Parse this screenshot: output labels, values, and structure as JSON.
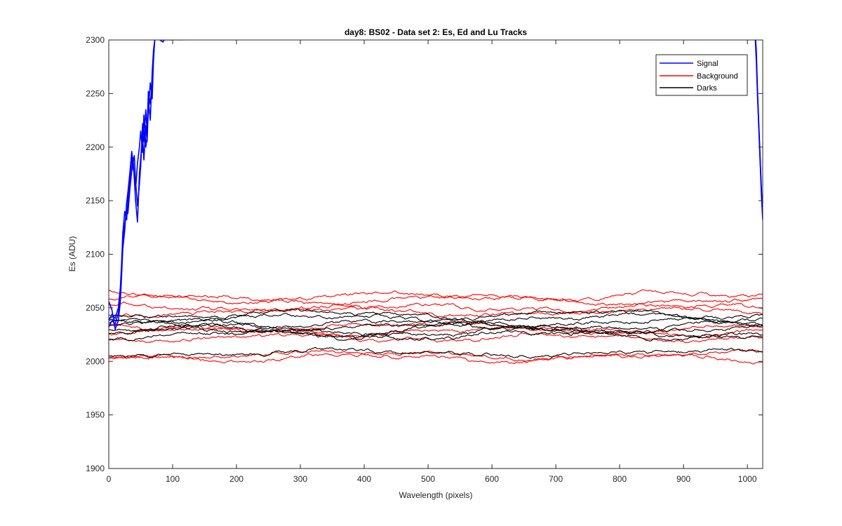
{
  "chart_data": {
    "type": "line",
    "title": "day8: BS02 - Data set 2: Es, Ed and Lu Tracks",
    "xlabel": "Wavelength (pixels)",
    "ylabel": "Es (ADU)",
    "xlim": [
      0,
      1024
    ],
    "ylim": [
      1900,
      2300
    ],
    "xticks": [
      0,
      100,
      200,
      300,
      400,
      500,
      600,
      700,
      800,
      900,
      1000
    ],
    "yticks": [
      1900,
      1950,
      2000,
      2050,
      2100,
      2150,
      2200,
      2250,
      2300
    ],
    "grid": false,
    "legend": {
      "placement": "top-right",
      "entries": [
        {
          "label": "Signal",
          "color": "#0000ff"
        },
        {
          "label": "Background",
          "color": "#ff0000"
        },
        {
          "label": "Darks",
          "color": "#000000"
        }
      ]
    },
    "series": [
      {
        "group": "Signal",
        "color": "#0000ff",
        "points": [
          [
            0,
            2038
          ],
          [
            5,
            2044
          ],
          [
            10,
            2040
          ],
          [
            15,
            2050
          ],
          [
            18,
            2068
          ],
          [
            20,
            2090
          ],
          [
            22,
            2120
          ],
          [
            25,
            2140
          ],
          [
            28,
            2132
          ],
          [
            30,
            2150
          ],
          [
            33,
            2170
          ],
          [
            36,
            2190
          ],
          [
            38,
            2180
          ],
          [
            40,
            2175
          ],
          [
            42,
            2160
          ],
          [
            45,
            2185
          ],
          [
            48,
            2200
          ],
          [
            50,
            2215
          ],
          [
            53,
            2195
          ],
          [
            55,
            2230
          ],
          [
            58,
            2200
          ],
          [
            60,
            2210
          ],
          [
            62,
            2245
          ],
          [
            65,
            2225
          ],
          [
            68,
            2270
          ],
          [
            70,
            2290
          ],
          [
            72,
            2300
          ],
          [
            75,
            2305
          ],
          [
            80,
            2300
          ],
          [
            85,
            2298
          ],
          [
            90,
            2305
          ],
          [
            95,
            2310
          ],
          [
            1012,
            2310
          ],
          [
            1014,
            2290
          ],
          [
            1016,
            2250
          ],
          [
            1018,
            2220
          ],
          [
            1020,
            2190
          ],
          [
            1022,
            2160
          ],
          [
            1024,
            2135
          ]
        ]
      },
      {
        "group": "Signal",
        "color": "#0000ff",
        "points": [
          [
            0,
            2032
          ],
          [
            5,
            2038
          ],
          [
            10,
            2035
          ],
          [
            15,
            2045
          ],
          [
            18,
            2060
          ],
          [
            20,
            2085
          ],
          [
            22,
            2112
          ],
          [
            25,
            2128
          ],
          [
            28,
            2140
          ],
          [
            30,
            2138
          ],
          [
            33,
            2160
          ],
          [
            36,
            2178
          ],
          [
            38,
            2190
          ],
          [
            40,
            2170
          ],
          [
            42,
            2150
          ],
          [
            45,
            2130
          ],
          [
            48,
            2175
          ],
          [
            50,
            2190
          ],
          [
            53,
            2210
          ],
          [
            55,
            2188
          ],
          [
            58,
            2220
          ],
          [
            60,
            2205
          ],
          [
            62,
            2235
          ],
          [
            65,
            2260
          ],
          [
            68,
            2245
          ],
          [
            70,
            2280
          ],
          [
            72,
            2300
          ],
          [
            75,
            2302
          ],
          [
            80,
            2300
          ],
          [
            1012,
            2305
          ],
          [
            1014,
            2280
          ],
          [
            1016,
            2245
          ],
          [
            1018,
            2215
          ],
          [
            1020,
            2185
          ],
          [
            1022,
            2155
          ],
          [
            1024,
            2132
          ]
        ]
      },
      {
        "group": "Signal",
        "color": "#0000ff",
        "points": [
          [
            0,
            2056
          ],
          [
            5,
            2048
          ],
          [
            10,
            2030
          ],
          [
            15,
            2038
          ],
          [
            18,
            2055
          ],
          [
            20,
            2078
          ],
          [
            22,
            2105
          ],
          [
            25,
            2122
          ],
          [
            28,
            2148
          ],
          [
            30,
            2158
          ],
          [
            33,
            2176
          ],
          [
            36,
            2196
          ],
          [
            38,
            2186
          ],
          [
            40,
            2192
          ],
          [
            42,
            2168
          ],
          [
            45,
            2145
          ],
          [
            48,
            2165
          ],
          [
            50,
            2182
          ],
          [
            53,
            2222
          ],
          [
            55,
            2205
          ],
          [
            58,
            2235
          ],
          [
            60,
            2215
          ],
          [
            62,
            2252
          ],
          [
            65,
            2240
          ],
          [
            68,
            2262
          ],
          [
            70,
            2285
          ],
          [
            72,
            2300
          ],
          [
            75,
            2306
          ],
          [
            1012,
            2308
          ],
          [
            1014,
            2285
          ],
          [
            1016,
            2248
          ],
          [
            1018,
            2218
          ],
          [
            1020,
            2188
          ],
          [
            1022,
            2158
          ],
          [
            1024,
            2133
          ]
        ]
      },
      {
        "group": "Background",
        "color": "#ff0000",
        "base": 2061,
        "amp": 3.0
      },
      {
        "group": "Background",
        "color": "#ff0000",
        "base": 2057,
        "amp": 3.0
      },
      {
        "group": "Background",
        "color": "#ff0000",
        "base": 2050,
        "amp": 2.5
      },
      {
        "group": "Background",
        "color": "#ff0000",
        "base": 2046,
        "amp": 2.5
      },
      {
        "group": "Background",
        "color": "#ff0000",
        "base": 2032,
        "amp": 3.0
      },
      {
        "group": "Background",
        "color": "#ff0000",
        "base": 2028,
        "amp": 3.0
      },
      {
        "group": "Background",
        "color": "#ff0000",
        "base": 2022,
        "amp": 2.5
      },
      {
        "group": "Background",
        "color": "#ff0000",
        "base": 2006,
        "amp": 3.0
      },
      {
        "group": "Background",
        "color": "#ff0000",
        "base": 2003,
        "amp": 3.0
      },
      {
        "group": "Darks",
        "color": "#000000",
        "base": 2044,
        "amp": 3.0
      },
      {
        "group": "Darks",
        "color": "#000000",
        "base": 2040,
        "amp": 3.0
      },
      {
        "group": "Darks",
        "color": "#000000",
        "base": 2036,
        "amp": 3.0
      },
      {
        "group": "Darks",
        "color": "#000000",
        "base": 2033,
        "amp": 3.0
      },
      {
        "group": "Darks",
        "color": "#000000",
        "base": 2030,
        "amp": 3.0
      },
      {
        "group": "Darks",
        "color": "#000000",
        "base": 2027,
        "amp": 3.0
      },
      {
        "group": "Darks",
        "color": "#000000",
        "base": 2024,
        "amp": 3.0
      },
      {
        "group": "Darks",
        "color": "#000000",
        "base": 2008,
        "amp": 2.5
      }
    ]
  }
}
